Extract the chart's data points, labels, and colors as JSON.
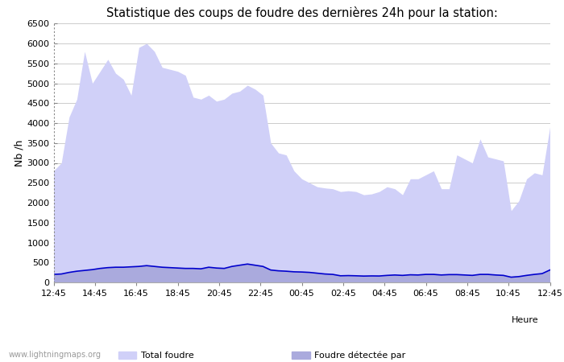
{
  "title": "Statistique des coups de foudre des dernières 24h pour la station:",
  "ylabel": "Nb /h",
  "xlabel": "Heure",
  "watermark": "www.lightningmaps.org",
  "ylim": [
    0,
    6500
  ],
  "yticks": [
    0,
    500,
    1000,
    1500,
    2000,
    2500,
    3000,
    3500,
    4000,
    4500,
    5000,
    5500,
    6000,
    6500
  ],
  "xtick_labels": [
    "12:45",
    "14:45",
    "16:45",
    "18:45",
    "20:45",
    "22:45",
    "00:45",
    "02:45",
    "04:45",
    "06:45",
    "08:45",
    "10:45",
    "12:45"
  ],
  "total_foudre_color": "#d0d0f8",
  "foudre_detectee_color": "#aaaadd",
  "ligne_color": "#0000cc",
  "background_color": "#ffffff",
  "plot_bg_color": "#ffffff",
  "grid_color": "#cccccc",
  "total_foudre": [
    2800,
    3000,
    4150,
    4600,
    5800,
    5000,
    5300,
    5600,
    5250,
    5100,
    4700,
    5900,
    6000,
    5800,
    5400,
    5350,
    5300,
    5200,
    4650,
    4600,
    4700,
    4550,
    4600,
    4750,
    4800,
    4950,
    4850,
    4700,
    3500,
    3250,
    3200,
    2800,
    2600,
    2500,
    2400,
    2370,
    2350,
    2280,
    2300,
    2280,
    2200,
    2220,
    2280,
    2400,
    2350,
    2200,
    2600,
    2600,
    2700,
    2800,
    2350,
    2350,
    3200,
    3100,
    3000,
    3600,
    3150,
    3100,
    3050,
    1800,
    2050,
    2600,
    2750,
    2700,
    3900
  ],
  "moyenne": [
    200,
    210,
    250,
    280,
    300,
    320,
    350,
    370,
    380,
    380,
    390,
    400,
    420,
    400,
    380,
    370,
    360,
    350,
    350,
    340,
    380,
    360,
    350,
    400,
    430,
    460,
    430,
    400,
    310,
    290,
    280,
    265,
    260,
    250,
    230,
    210,
    200,
    165,
    170,
    165,
    158,
    162,
    160,
    175,
    185,
    175,
    190,
    185,
    200,
    200,
    185,
    195,
    195,
    185,
    175,
    200,
    200,
    185,
    175,
    130,
    145,
    175,
    200,
    220,
    310
  ]
}
